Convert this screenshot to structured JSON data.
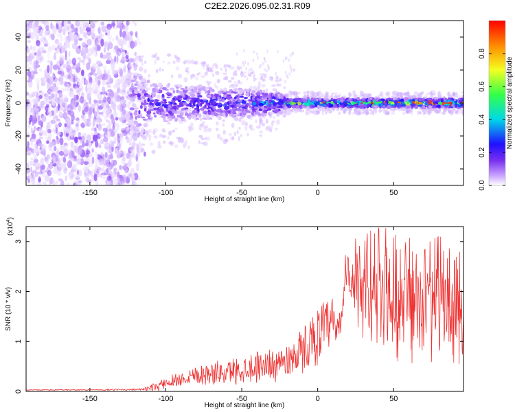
{
  "page": {
    "title": "C2E2.2026.095.02.31.R09"
  },
  "chart_data": [
    {
      "type": "heatmap",
      "title": "C2E2.2026.095.02.31.R09",
      "xlabel": "Height of straight line (km)",
      "ylabel": "Frequency (Hz)",
      "xlim": [
        -192,
        96
      ],
      "ylim": [
        -50,
        50
      ],
      "x_ticks": [
        -150,
        -100,
        -50,
        0,
        50
      ],
      "x_tick_labels": [
        "-150",
        "-100",
        "-50",
        "0",
        "50"
      ],
      "y_ticks": [
        -40,
        -20,
        0,
        20,
        40
      ],
      "y_tick_labels": [
        "-40",
        "-20",
        "0",
        "20",
        "40"
      ],
      "colorbar": {
        "label": "Normalized spectral amplitude",
        "range": [
          0,
          1
        ],
        "ticks": [
          0.0,
          0.2,
          0.4,
          0.6,
          0.8
        ],
        "tick_labels": [
          "0.0",
          "0.2",
          "0.4",
          "0.6",
          "0.8"
        ],
        "colormap": [
          "#ffffff",
          "#c9a3ff",
          "#7a30f0",
          "#2010ff",
          "#00d8e8",
          "#33ff4a",
          "#f4ff20",
          "#ff8a00",
          "#ff0000"
        ]
      },
      "band_profile": {
        "x_knots": [
          -192,
          -125,
          -118,
          -110,
          -40,
          -25,
          -20,
          96
        ],
        "halfwidth_hz": [
          50,
          50,
          35,
          12,
          8,
          6,
          2.5,
          2.5
        ],
        "peak_amplitude": [
          0.25,
          0.25,
          0.3,
          0.38,
          0.45,
          0.55,
          0.72,
          0.82
        ]
      },
      "grid": false
    },
    {
      "type": "line",
      "xlabel": "Height of straight line (km)",
      "ylabel": "SNR (10 * v/v)",
      "scale_label": "(x10",
      "scale_exp": "4",
      "scale_close": ")",
      "xlim": [
        -192,
        96
      ],
      "ylim": [
        0,
        3.3
      ],
      "x_ticks": [
        -150,
        -100,
        -50,
        0,
        50
      ],
      "x_tick_labels": [
        "-150",
        "-100",
        "-50",
        "0",
        "50"
      ],
      "y_ticks": [
        0,
        1,
        2,
        3
      ],
      "y_tick_labels": [
        "0",
        "1",
        "2",
        "3"
      ],
      "color": "#ee3333",
      "series": [
        {
          "x": [
            -192,
            -150,
            -115,
            -105,
            -100,
            -90,
            -80,
            -70,
            -60,
            -50,
            -40,
            -30,
            -20,
            -15,
            -10,
            -5,
            0,
            5,
            10,
            15,
            18,
            20,
            25,
            30,
            35,
            40,
            45,
            50,
            55,
            60,
            65,
            70,
            75,
            80,
            85,
            90,
            96
          ],
          "y": [
            0.03,
            0.03,
            0.04,
            0.1,
            0.18,
            0.25,
            0.35,
            0.35,
            0.38,
            0.45,
            0.5,
            0.55,
            0.6,
            0.75,
            0.8,
            1.0,
            1.15,
            1.25,
            1.3,
            1.2,
            2.3,
            2.4,
            1.9,
            1.6,
            2.0,
            1.8,
            2.1,
            1.7,
            1.6,
            1.8,
            1.5,
            1.7,
            1.6,
            1.8,
            1.5,
            1.4,
            1.5
          ],
          "spread": [
            0.01,
            0.01,
            0.02,
            0.1,
            0.12,
            0.15,
            0.2,
            0.22,
            0.24,
            0.28,
            0.3,
            0.32,
            0.35,
            0.4,
            0.45,
            0.5,
            0.55,
            0.6,
            0.6,
            0.6,
            0.3,
            0.4,
            0.8,
            0.9,
            0.95,
            1.0,
            1.0,
            1.0,
            0.95,
            1.0,
            0.95,
            0.95,
            0.95,
            1.0,
            0.95,
            0.9,
            0.9
          ]
        }
      ]
    }
  ]
}
